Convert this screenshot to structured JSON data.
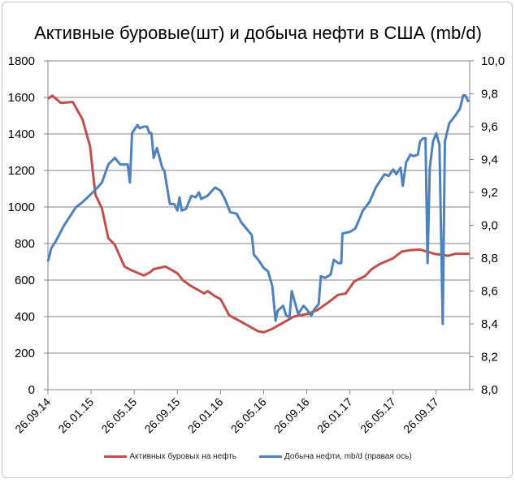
{
  "chart_data": {
    "type": "line",
    "title": "Активные буровые(шт) и добыча нефти в США (mb/d)",
    "x_unit": "months since 26.09.14",
    "x_range": [
      0,
      39.1
    ],
    "x_tick_labels": [
      "26.09.14",
      "26.01.15",
      "26.05.15",
      "26.09.15",
      "26.01.16",
      "26.05.16",
      "26.09.16",
      "26.01.17",
      "26.05.17",
      "26.09.17"
    ],
    "x_tick_months": [
      0,
      4,
      8,
      12,
      16,
      20,
      24,
      28,
      32,
      36
    ],
    "y_left": {
      "range": [
        0,
        1800
      ],
      "ticks": [
        "0",
        "200",
        "400",
        "600",
        "800",
        "1000",
        "1200",
        "1400",
        "1600",
        "1800"
      ]
    },
    "y_right": {
      "range": [
        8.0,
        10.0
      ],
      "ticks": [
        "8,0",
        "8,2",
        "8,4",
        "8,6",
        "8,8",
        "9,0",
        "9,2",
        "9,4",
        "9,6",
        "9,8",
        "10,0"
      ]
    },
    "grid": true,
    "legend_position": "bottom",
    "series": [
      {
        "name": "Активных буровых на нефть",
        "axis": "left",
        "color": "#c0504d",
        "points": [
          [
            0,
            1593
          ],
          [
            0.4,
            1610
          ],
          [
            1.2,
            1570
          ],
          [
            2.3,
            1575
          ],
          [
            3.2,
            1480
          ],
          [
            3.9,
            1333
          ],
          [
            4.4,
            1067
          ],
          [
            5.0,
            993
          ],
          [
            5.6,
            830
          ],
          [
            6.2,
            793
          ],
          [
            7.1,
            674
          ],
          [
            7.8,
            652
          ],
          [
            8.9,
            625
          ],
          [
            9.5,
            644
          ],
          [
            9.8,
            660
          ],
          [
            10.9,
            674
          ],
          [
            12.0,
            637
          ],
          [
            12.5,
            600
          ],
          [
            13.2,
            570
          ],
          [
            14.5,
            526
          ],
          [
            14.8,
            540
          ],
          [
            15.5,
            511
          ],
          [
            16.0,
            496
          ],
          [
            16.8,
            407
          ],
          [
            17.5,
            385
          ],
          [
            18.4,
            356
          ],
          [
            19.5,
            319
          ],
          [
            20.0,
            314
          ],
          [
            20.8,
            333
          ],
          [
            21.9,
            370
          ],
          [
            22.8,
            400
          ],
          [
            24.1,
            415
          ],
          [
            25.0,
            437
          ],
          [
            25.9,
            474
          ],
          [
            26.9,
            519
          ],
          [
            27.6,
            526
          ],
          [
            28.4,
            593
          ],
          [
            29.4,
            622
          ],
          [
            30.0,
            659
          ],
          [
            30.8,
            689
          ],
          [
            32.0,
            719
          ],
          [
            32.8,
            756
          ],
          [
            33.5,
            763
          ],
          [
            34.5,
            767
          ],
          [
            35.8,
            744
          ],
          [
            37.1,
            733
          ],
          [
            37.8,
            744
          ],
          [
            39.1,
            744
          ]
        ]
      },
      {
        "name": "Добыча нефти, mb/d (правая ось)",
        "axis": "right",
        "color": "#4f81bd",
        "points": [
          [
            0,
            8.78
          ],
          [
            0.3,
            8.86
          ],
          [
            0.7,
            8.9
          ],
          [
            1.5,
            9.0
          ],
          [
            2.0,
            9.05
          ],
          [
            2.6,
            9.11
          ],
          [
            3.2,
            9.14
          ],
          [
            4.0,
            9.19
          ],
          [
            4.6,
            9.23
          ],
          [
            5.0,
            9.26
          ],
          [
            5.6,
            9.37
          ],
          [
            6.2,
            9.41
          ],
          [
            6.7,
            9.37
          ],
          [
            7.4,
            9.37
          ],
          [
            7.6,
            9.26
          ],
          [
            7.8,
            9.56
          ],
          [
            8.3,
            9.61
          ],
          [
            8.5,
            9.59
          ],
          [
            8.9,
            9.6
          ],
          [
            9.2,
            9.6
          ],
          [
            9.4,
            9.56
          ],
          [
            9.6,
            9.56
          ],
          [
            9.8,
            9.41
          ],
          [
            10.1,
            9.47
          ],
          [
            10.6,
            9.35
          ],
          [
            10.8,
            9.33
          ],
          [
            11.3,
            9.13
          ],
          [
            11.7,
            9.13
          ],
          [
            12.0,
            9.09
          ],
          [
            12.2,
            9.17
          ],
          [
            12.4,
            9.09
          ],
          [
            12.8,
            9.1
          ],
          [
            13.3,
            9.18
          ],
          [
            13.7,
            9.17
          ],
          [
            14.0,
            9.2
          ],
          [
            14.2,
            9.16
          ],
          [
            14.8,
            9.18
          ],
          [
            15.5,
            9.23
          ],
          [
            16.0,
            9.21
          ],
          [
            16.4,
            9.16
          ],
          [
            16.9,
            9.08
          ],
          [
            17.5,
            9.07
          ],
          [
            17.9,
            9.02
          ],
          [
            18.4,
            8.98
          ],
          [
            18.9,
            8.94
          ],
          [
            19.1,
            8.82
          ],
          [
            19.5,
            8.79
          ],
          [
            20.0,
            8.74
          ],
          [
            20.4,
            8.72
          ],
          [
            20.8,
            8.63
          ],
          [
            21.1,
            8.42
          ],
          [
            21.3,
            8.48
          ],
          [
            21.8,
            8.51
          ],
          [
            22.1,
            8.45
          ],
          [
            22.4,
            8.44
          ],
          [
            22.6,
            8.6
          ],
          [
            23.2,
            8.46
          ],
          [
            23.7,
            8.51
          ],
          [
            24.1,
            8.48
          ],
          [
            24.4,
            8.45
          ],
          [
            24.7,
            8.49
          ],
          [
            25.1,
            8.52
          ],
          [
            25.3,
            8.69
          ],
          [
            25.7,
            8.68
          ],
          [
            26.2,
            8.7
          ],
          [
            26.5,
            8.79
          ],
          [
            26.9,
            8.77
          ],
          [
            27.2,
            8.77
          ],
          [
            27.3,
            8.95
          ],
          [
            28.0,
            8.96
          ],
          [
            28.5,
            8.98
          ],
          [
            29.2,
            9.09
          ],
          [
            29.8,
            9.14
          ],
          [
            30.4,
            9.23
          ],
          [
            31.2,
            9.31
          ],
          [
            31.6,
            9.3
          ],
          [
            32.0,
            9.34
          ],
          [
            32.3,
            9.31
          ],
          [
            32.7,
            9.35
          ],
          [
            32.9,
            9.24
          ],
          [
            33.2,
            9.38
          ],
          [
            33.6,
            9.43
          ],
          [
            33.9,
            9.42
          ],
          [
            34.3,
            9.43
          ],
          [
            34.5,
            9.51
          ],
          [
            34.8,
            9.53
          ],
          [
            35.0,
            9.53
          ],
          [
            35.2,
            8.77
          ],
          [
            35.4,
            9.35
          ],
          [
            35.7,
            9.51
          ],
          [
            36.0,
            9.56
          ],
          [
            36.3,
            9.49
          ],
          [
            36.6,
            8.4
          ],
          [
            36.8,
            9.51
          ],
          [
            37.2,
            9.62
          ],
          [
            37.8,
            9.67
          ],
          [
            38.2,
            9.71
          ],
          [
            38.5,
            9.79
          ],
          [
            38.7,
            9.79
          ],
          [
            39.0,
            9.75
          ]
        ]
      }
    ]
  }
}
